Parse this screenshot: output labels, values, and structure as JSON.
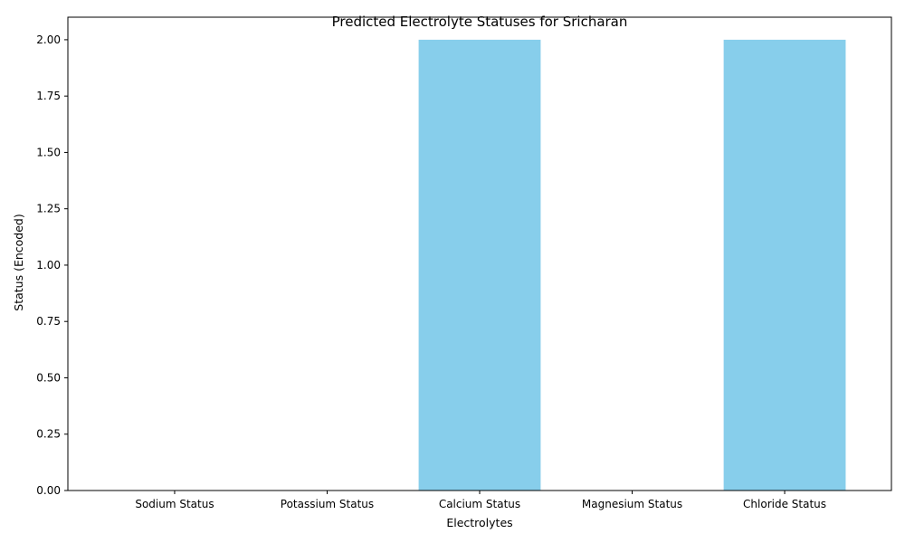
{
  "chart_data": {
    "type": "bar",
    "title": "Predicted Electrolyte Statuses for Sricharan",
    "xlabel": "Electrolytes",
    "ylabel": "Status (Encoded)",
    "categories": [
      "Sodium Status",
      "Potassium Status",
      "Calcium Status",
      "Magnesium Status",
      "Chloride Status"
    ],
    "values": [
      0,
      0,
      2,
      0,
      2
    ],
    "ylim": [
      0,
      2.1
    ],
    "yticks": [
      "0.00",
      "0.25",
      "0.50",
      "0.75",
      "1.00",
      "1.25",
      "1.50",
      "1.75",
      "2.00"
    ],
    "bar_color": "#87ceeb",
    "grid": false,
    "legend": "none"
  }
}
